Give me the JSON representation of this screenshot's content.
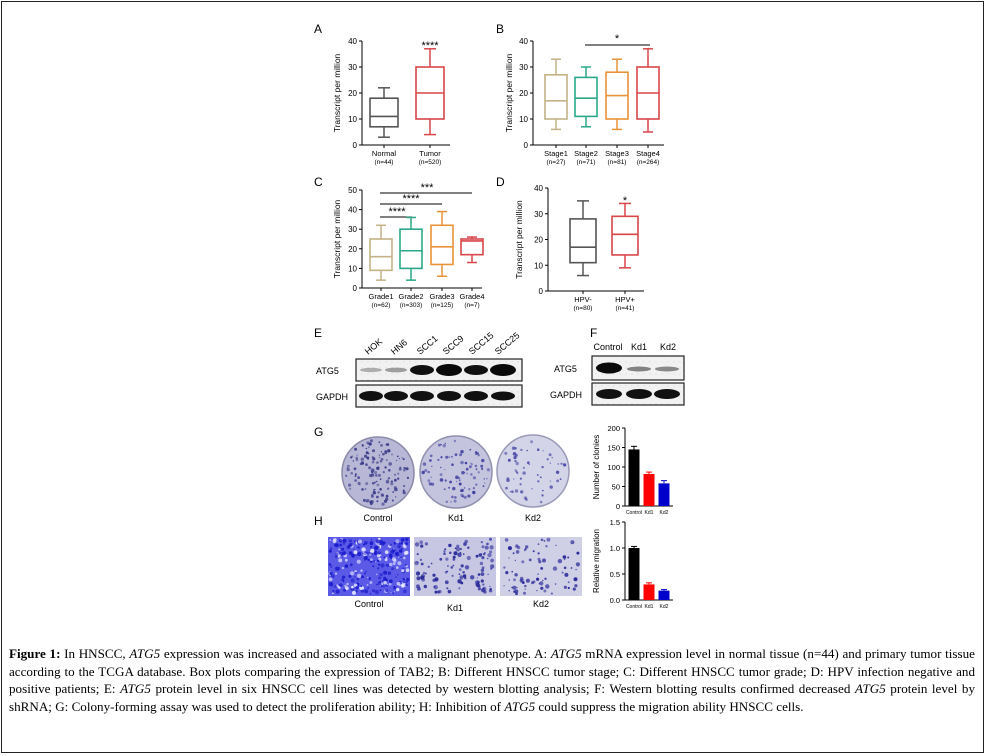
{
  "panels": {
    "A": {
      "letter": "A",
      "ylabel": "Transcript per million",
      "yticks": [
        "0",
        "10",
        "20",
        "30",
        "40"
      ],
      "cats": [
        "Normal",
        "Tumor"
      ],
      "ns": [
        "(n=44)",
        "(n=520)"
      ],
      "sig": "****"
    },
    "B": {
      "letter": "B",
      "ylabel": "Transcript per million",
      "yticks": [
        "0",
        "10",
        "20",
        "30",
        "40"
      ],
      "cats": [
        "Stage1",
        "Stage2",
        "Stage3",
        "Stage4"
      ],
      "ns": [
        "(n=27)",
        "(n=71)",
        "(n=81)",
        "(n=264)"
      ],
      "sig": "*"
    },
    "C": {
      "letter": "C",
      "ylabel": "Transcript per million",
      "yticks": [
        "0",
        "10",
        "20",
        "30",
        "40",
        "50"
      ],
      "cats": [
        "Grade1",
        "Grade2",
        "Grade3",
        "Grade4"
      ],
      "ns": [
        "(n=62)",
        "(n=303)",
        "(n=125)",
        "(n=7)"
      ],
      "sig1": "****",
      "sig2": "****",
      "sig3": "***"
    },
    "D": {
      "letter": "D",
      "ylabel": "Transcript per million",
      "yticks": [
        "0",
        "10",
        "20",
        "30",
        "40"
      ],
      "cats": [
        "HPV-",
        "HPV+"
      ],
      "ns": [
        "(n=80)",
        "(n=41)"
      ],
      "sig": "*"
    },
    "E": {
      "letter": "E",
      "lanes": [
        "HOK",
        "HN6",
        "SCC1",
        "SCC9",
        "SCC15",
        "SCC25"
      ],
      "rows": [
        "ATG5",
        "GAPDH"
      ]
    },
    "F": {
      "letter": "F",
      "lanes": [
        "Control",
        "Kd1",
        "Kd2"
      ],
      "rows": [
        "ATG5",
        "GAPDH"
      ]
    },
    "G": {
      "letter": "G",
      "labels": [
        "Control",
        "Kd1",
        "Kd2"
      ]
    },
    "H": {
      "letter": "H",
      "labels": [
        "Control",
        "Kd1",
        "Kd2"
      ]
    }
  },
  "chart_data": [
    {
      "panel": "A",
      "type": "box",
      "ylabel": "Transcript per million",
      "ylim": [
        0,
        40
      ],
      "categories": [
        "Normal",
        "Tumor"
      ],
      "colors": [
        "#555555",
        "#d8464a"
      ],
      "boxes": [
        {
          "min": 3,
          "q1": 7,
          "median": 11,
          "q3": 18,
          "max": 22
        },
        {
          "min": 4,
          "q1": 10,
          "median": 20,
          "q3": 30,
          "max": 37
        }
      ]
    },
    {
      "panel": "B",
      "type": "box",
      "ylabel": "Transcript per million",
      "ylim": [
        0,
        40
      ],
      "categories": [
        "Stage1",
        "Stage2",
        "Stage3",
        "Stage4"
      ],
      "colors": [
        "#c4b287",
        "#2aa889",
        "#e8923a",
        "#d8464a"
      ],
      "boxes": [
        {
          "min": 6,
          "q1": 10,
          "median": 17,
          "q3": 27,
          "max": 33
        },
        {
          "min": 7,
          "q1": 11,
          "median": 18,
          "q3": 26,
          "max": 30
        },
        {
          "min": 6,
          "q1": 10,
          "median": 19,
          "q3": 28,
          "max": 33
        },
        {
          "min": 5,
          "q1": 10,
          "median": 20,
          "q3": 30,
          "max": 37
        }
      ]
    },
    {
      "panel": "C",
      "type": "box",
      "ylabel": "Transcript per million",
      "ylim": [
        0,
        50
      ],
      "categories": [
        "Grade1",
        "Grade2",
        "Grade3",
        "Grade4"
      ],
      "colors": [
        "#c4b287",
        "#2aa889",
        "#e8923a",
        "#d8464a"
      ],
      "boxes": [
        {
          "min": 4,
          "q1": 9,
          "median": 16,
          "q3": 25,
          "max": 32
        },
        {
          "min": 4,
          "q1": 10,
          "median": 19,
          "q3": 30,
          "max": 36
        },
        {
          "min": 6,
          "q1": 12,
          "median": 21,
          "q3": 32,
          "max": 39
        },
        {
          "min": 13,
          "q1": 17,
          "median": 24,
          "q3": 25,
          "max": 26
        }
      ]
    },
    {
      "panel": "D",
      "type": "box",
      "ylabel": "Transcript per million",
      "ylim": [
        0,
        40
      ],
      "categories": [
        "HPV-",
        "HPV+"
      ],
      "colors": [
        "#555555",
        "#d8464a"
      ],
      "boxes": [
        {
          "min": 6,
          "q1": 11,
          "median": 17,
          "q3": 28,
          "max": 35
        },
        {
          "min": 9,
          "q1": 14,
          "median": 22,
          "q3": 29,
          "max": 34
        }
      ]
    },
    {
      "panel": "G",
      "type": "bar",
      "ylabel": "Number of clonies",
      "ylim": [
        0,
        200
      ],
      "yticks": [
        0,
        50,
        100,
        150,
        200
      ],
      "categories": [
        "Control",
        "Kd1",
        "Kd2"
      ],
      "colors": [
        "#000000",
        "#ff0000",
        "#0000cc"
      ],
      "values": [
        145,
        82,
        58
      ],
      "errors": [
        8,
        5,
        7
      ]
    },
    {
      "panel": "H",
      "type": "bar",
      "ylabel": "Relative migration",
      "ylim": [
        0,
        1.5
      ],
      "yticks": [
        0.0,
        0.5,
        1.0,
        1.5
      ],
      "categories": [
        "Control",
        "Kd1",
        "Kd2"
      ],
      "colors": [
        "#000000",
        "#ff0000",
        "#0000cc"
      ],
      "values": [
        1.0,
        0.3,
        0.18
      ],
      "errors": [
        0.03,
        0.03,
        0.02
      ]
    }
  ],
  "caption": {
    "label": "Figure 1:",
    "segments": [
      {
        "t": " In HNSCC, "
      },
      {
        "t": "ATG5",
        "i": true
      },
      {
        "t": " expression was increased and associated with a malignant phenotype. A: "
      },
      {
        "t": "ATG5",
        "i": true
      },
      {
        "t": " mRNA expression level in normal tissue (n=44) and primary tumor tissue according to the TCGA database. Box plots comparing the expression of TAB2; B: Different HNSCC tumor stage; C: Different HNSCC tumor grade; D: HPV infection negative and positive patients; E: "
      },
      {
        "t": "ATG5",
        "i": true
      },
      {
        "t": " protein level in six HNSCC cell lines was detected by western blotting analysis; F: Western blotting results confirmed decreased "
      },
      {
        "t": "ATG5",
        "i": true
      },
      {
        "t": " protein level by shRNA; G: Colony-forming assay was used to detect the proliferation ability; H: Inhibition of "
      },
      {
        "t": "ATG5",
        "i": true
      },
      {
        "t": " could suppress the migration ability HNSCC cells."
      }
    ]
  }
}
